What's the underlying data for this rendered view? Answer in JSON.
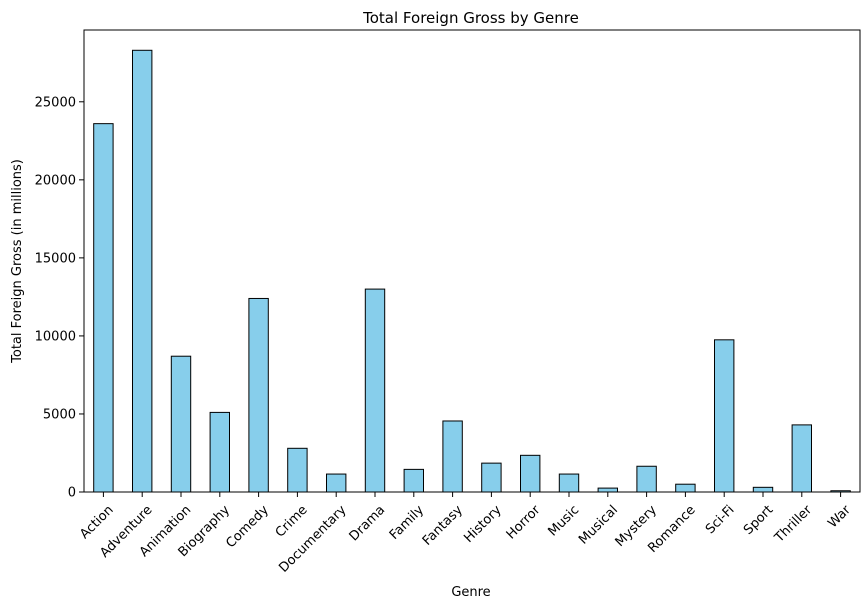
{
  "chart_data": {
    "type": "bar",
    "title": "Total Foreign Gross by Genre",
    "xlabel": "Genre",
    "ylabel": "Total Foreign Gross (in millions)",
    "categories": [
      "Action",
      "Adventure",
      "Animation",
      "Biography",
      "Comedy",
      "Crime",
      "Documentary",
      "Drama",
      "Family",
      "Fantasy",
      "History",
      "Horror",
      "Music",
      "Musical",
      "Mystery",
      "Romance",
      "Sci-Fi",
      "Sport",
      "Thriller",
      "War"
    ],
    "values": [
      23600,
      28300,
      8700,
      5100,
      12400,
      2800,
      1150,
      13000,
      1450,
      4550,
      1850,
      2350,
      1150,
      250,
      1650,
      500,
      9750,
      300,
      4300,
      80
    ],
    "ylim": [
      0,
      29600
    ],
    "yticks": [
      0,
      5000,
      10000,
      15000,
      20000,
      25000
    ],
    "grid": false,
    "bar_color": "#87ceeb",
    "edge_color": "#000000"
  }
}
